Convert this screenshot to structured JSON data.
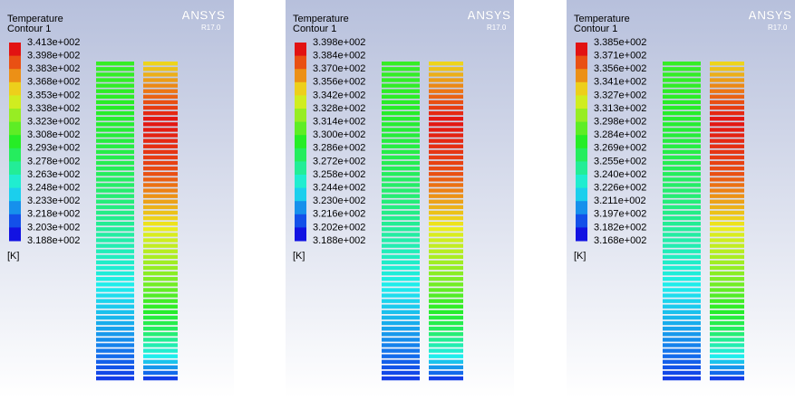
{
  "panels": [
    {
      "title": "Temperature",
      "subtitle": "Contour 1",
      "logo": "ANSYS",
      "version": "R17.0",
      "unit": "[K]",
      "labels": [
        "3.413e+002",
        "3.398e+002",
        "3.383e+002",
        "3.368e+002",
        "3.353e+002",
        "3.338e+002",
        "3.323e+002",
        "3.308e+002",
        "3.293e+002",
        "3.278e+002",
        "3.263e+002",
        "3.248e+002",
        "3.233e+002",
        "3.218e+002",
        "3.203e+002",
        "3.188e+002"
      ]
    },
    {
      "title": "Temperature",
      "subtitle": "Contour 1",
      "logo": "ANSYS",
      "version": "R17.0",
      "unit": "[K]",
      "labels": [
        "3.398e+002",
        "3.384e+002",
        "3.370e+002",
        "3.356e+002",
        "3.342e+002",
        "3.328e+002",
        "3.314e+002",
        "3.300e+002",
        "3.286e+002",
        "3.272e+002",
        "3.258e+002",
        "3.244e+002",
        "3.230e+002",
        "3.216e+002",
        "3.202e+002",
        "3.188e+002"
      ]
    },
    {
      "title": "Temperature",
      "subtitle": "Contour 1",
      "logo": "ANSYS",
      "version": "R17.0",
      "unit": "[K]",
      "labels": [
        "3.385e+002",
        "3.371e+002",
        "3.356e+002",
        "3.341e+002",
        "3.327e+002",
        "3.313e+002",
        "3.298e+002",
        "3.284e+002",
        "3.269e+002",
        "3.255e+002",
        "3.240e+002",
        "3.226e+002",
        "3.211e+002",
        "3.197e+002",
        "3.182e+002",
        "3.168e+002"
      ]
    }
  ]
}
